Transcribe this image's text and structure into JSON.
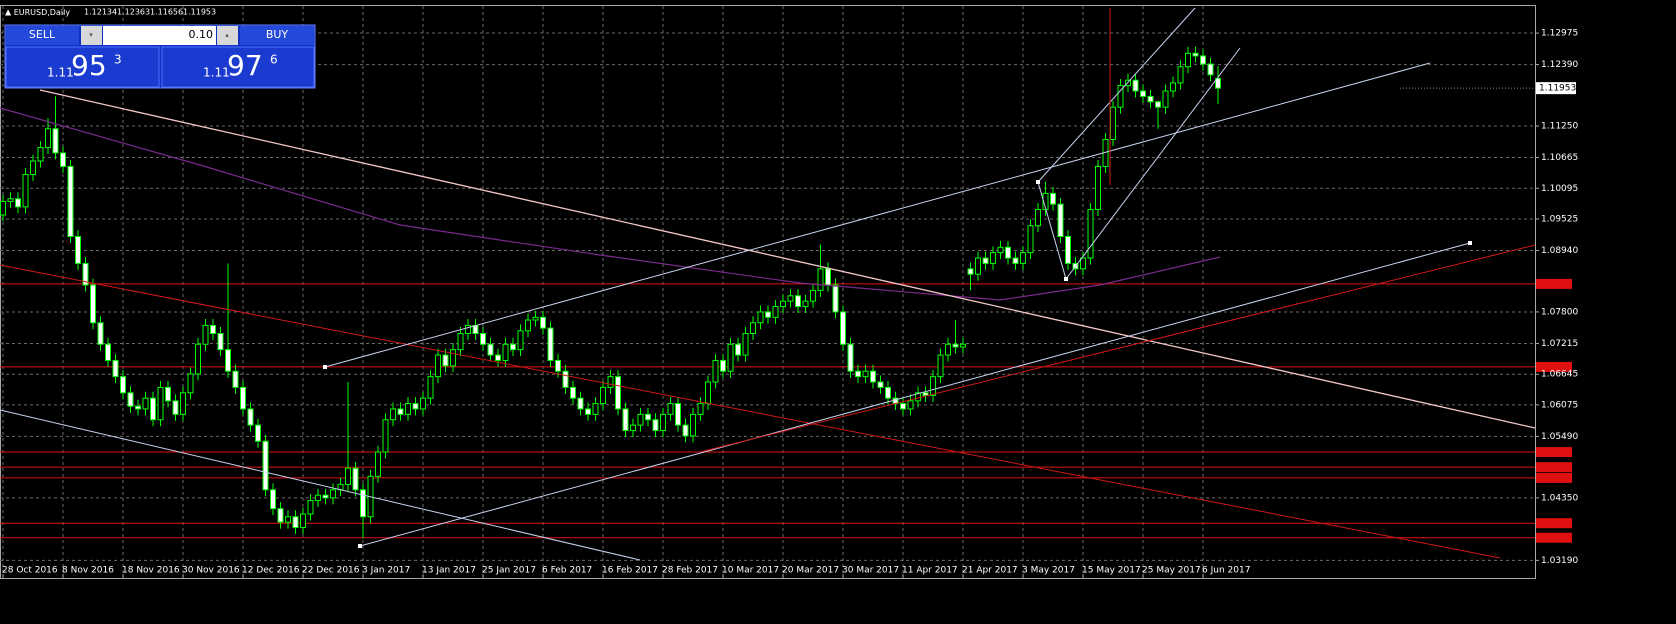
{
  "symbol": "EURUSD,Daily",
  "trade_panel": {
    "sell_label": "SELL",
    "buy_label": "BUY",
    "lot": "0.10",
    "bid": {
      "big": "1.11",
      "pips": "95",
      "point": "3"
    },
    "ask": {
      "big": "1.11",
      "pips": "97",
      "point": "6"
    }
  },
  "chart_data": {
    "type": "candlestick",
    "categories": [
      "28 Oct 2016",
      null,
      null,
      null,
      null,
      null,
      null,
      null,
      "8 Nov 2016",
      null,
      null,
      null,
      null,
      null,
      null,
      null,
      "18 Nov 2016",
      null,
      null,
      null,
      null,
      null,
      null,
      null,
      "30 Nov 2016",
      null,
      null,
      null,
      null,
      null,
      null,
      null,
      "12 Dec 2016",
      null,
      null,
      null,
      null,
      null,
      null,
      null,
      "22 Dec 2016",
      null,
      null,
      null,
      null,
      null,
      null,
      null,
      "3 Jan 2017",
      null,
      null,
      null,
      null,
      null,
      null,
      null,
      "13 Jan 2017",
      null,
      null,
      null,
      null,
      null,
      null,
      null,
      "25 Jan 2017",
      null,
      null,
      null,
      null,
      null,
      null,
      null,
      "6 Feb 2017",
      null,
      null,
      null,
      null,
      null,
      null,
      null,
      "16 Feb 2017",
      null,
      null,
      null,
      null,
      null,
      null,
      null,
      "28 Feb 2017",
      null,
      null,
      null,
      null,
      null,
      null,
      null,
      "10 Mar 2017",
      null,
      null,
      null,
      null,
      null,
      null,
      null,
      "20 Mar 2017",
      null,
      null,
      null,
      null,
      null,
      null,
      null,
      "30 Mar 2017",
      null,
      null,
      null,
      null,
      null,
      null,
      null,
      "11 Apr 2017",
      null,
      null,
      null,
      null,
      null,
      null,
      null,
      "21 Apr 2017",
      null,
      null,
      null,
      null,
      null,
      null,
      null,
      "3 May 2017",
      null,
      null,
      null,
      null,
      null,
      null,
      null,
      "15 May 2017",
      null,
      null,
      null,
      null,
      null,
      null,
      null,
      "25 May 2017",
      null,
      null,
      null,
      null,
      null,
      null,
      null,
      "6 Jun 2017",
      null,
      null
    ],
    "open": [
      1.096,
      1.0985,
      1.099,
      1.0975,
      1.1035,
      1.106,
      1.1085,
      1.112,
      1.1075,
      1.105,
      1.092,
      1.087,
      1.083,
      1.076,
      1.072,
      1.069,
      1.066,
      1.063,
      1.0605,
      1.06,
      1.062,
      1.058,
      1.064,
      1.0615,
      1.059,
      1.063,
      1.0665,
      1.072,
      1.0755,
      1.074,
      1.071,
      1.067,
      1.064,
      1.06,
      1.057,
      1.054,
      1.045,
      1.0415,
      1.039,
      1.04,
      1.038,
      1.0405,
      1.043,
      1.044,
      1.0435,
      1.045,
      1.046,
      1.049,
      1.045,
      1.04,
      1.0475,
      1.052,
      1.058,
      1.06,
      1.059,
      1.061,
      1.06,
      1.062,
      1.066,
      1.07,
      1.068,
      1.071,
      1.074,
      1.0755,
      1.074,
      1.072,
      1.07,
      1.069,
      1.072,
      1.071,
      1.0745,
      1.0765,
      1.077,
      1.075,
      1.069,
      1.067,
      1.064,
      1.062,
      1.06,
      1.059,
      1.061,
      1.064,
      1.066,
      1.06,
      1.056,
      1.057,
      1.059,
      1.058,
      1.056,
      1.059,
      1.061,
      1.057,
      1.055,
      1.059,
      1.061,
      1.065,
      1.069,
      1.067,
      1.072,
      1.07,
      1.074,
      1.076,
      1.078,
      1.077,
      1.079,
      1.08,
      1.081,
      1.079,
      1.08,
      1.082,
      1.086,
      1.083,
      1.078,
      1.072,
      1.067,
      1.066,
      1.067,
      1.065,
      1.064,
      1.062,
      1.061,
      1.06,
      1.0615,
      1.063,
      1.0625,
      1.066,
      1.07,
      1.072,
      1.0715,
      1.086,
      1.085,
      1.088,
      1.087,
      1.089,
      1.09,
      1.088,
      1.087,
      1.089,
      1.094,
      1.097,
      1.1,
      1.098,
      1.092,
      1.087,
      1.086,
      1.088,
      1.097,
      1.105,
      1.11,
      1.116,
      1.12,
      1.121,
      1.119,
      1.118,
      1.117,
      1.116,
      1.119,
      1.1205,
      1.1235,
      1.126,
      1.1255,
      1.124,
      1.12134
    ],
    "high": [
      1.0997,
      1.1002,
      1.1002,
      1.1047,
      1.1072,
      1.1097,
      1.114,
      1.118,
      1.1087,
      1.1062,
      1.0932,
      1.0882,
      1.0842,
      1.0772,
      1.0732,
      1.0702,
      1.0672,
      1.0642,
      1.0617,
      1.0632,
      1.0632,
      1.0652,
      1.0652,
      1.0627,
      1.0642,
      1.0677,
      1.0732,
      1.0767,
      1.0767,
      1.0752,
      1.087,
      1.0682,
      1.0652,
      1.0612,
      1.0582,
      1.0552,
      1.0462,
      1.0427,
      1.0412,
      1.0412,
      1.0417,
      1.0442,
      1.0452,
      1.0452,
      1.0462,
      1.0472,
      1.065,
      1.0502,
      1.0462,
      1.0487,
      1.0532,
      1.0592,
      1.0612,
      1.0612,
      1.0622,
      1.0622,
      1.0632,
      1.0672,
      1.0712,
      1.0712,
      1.0722,
      1.0752,
      1.0767,
      1.0767,
      1.0752,
      1.0732,
      1.0712,
      1.0732,
      1.0732,
      1.0757,
      1.0777,
      1.0782,
      1.0782,
      1.0762,
      1.0702,
      1.0682,
      1.0652,
      1.0632,
      1.0612,
      1.0622,
      1.0652,
      1.0672,
      1.0672,
      1.0612,
      1.0582,
      1.0602,
      1.0602,
      1.0592,
      1.0602,
      1.0622,
      1.0622,
      1.0582,
      1.0602,
      1.0622,
      1.0662,
      1.0702,
      1.0702,
      1.0732,
      1.0732,
      1.0752,
      1.0772,
      1.0792,
      1.0792,
      1.0802,
      1.0812,
      1.0822,
      1.0822,
      1.0812,
      1.0832,
      1.0905,
      1.0872,
      1.0842,
      1.0792,
      1.0732,
      1.0682,
      1.0682,
      1.0682,
      1.0662,
      1.0652,
      1.0632,
      1.0622,
      1.0627,
      1.0642,
      1.0642,
      1.0672,
      1.0712,
      1.0732,
      1.0765,
      1.0732,
      1.0872,
      1.0892,
      1.0892,
      1.0902,
      1.0912,
      1.0912,
      1.0892,
      1.0902,
      1.0952,
      1.0982,
      1.1022,
      1.1012,
      1.0992,
      1.0932,
      1.0882,
      1.0892,
      1.0982,
      1.1062,
      1.1112,
      1.1172,
      1.1212,
      1.1222,
      1.1222,
      1.1202,
      1.1192,
      1.1172,
      1.1202,
      1.1217,
      1.1247,
      1.1272,
      1.1272,
      1.1267,
      1.1252,
      1.12363
    ],
    "low": [
      1.0948,
      1.0973,
      1.0963,
      1.0963,
      1.1023,
      1.1048,
      1.1073,
      1.1063,
      1.1038,
      1.0908,
      1.0858,
      1.0818,
      1.0748,
      1.0708,
      1.0678,
      1.0648,
      1.0618,
      1.0593,
      1.0588,
      1.0588,
      1.0568,
      1.0568,
      1.0603,
      1.0578,
      1.0578,
      1.0618,
      1.0653,
      1.0708,
      1.0728,
      1.0698,
      1.0658,
      1.0628,
      1.0588,
      1.0558,
      1.0528,
      1.0438,
      1.0403,
      1.0378,
      1.0378,
      1.0368,
      1.0368,
      1.0393,
      1.0418,
      1.0423,
      1.0423,
      1.0438,
      1.0448,
      1.0438,
      1.036,
      1.0388,
      1.0463,
      1.0508,
      1.0568,
      1.0578,
      1.0578,
      1.0588,
      1.0588,
      1.0608,
      1.0648,
      1.0668,
      1.0668,
      1.0698,
      1.0728,
      1.0728,
      1.0708,
      1.0688,
      1.0678,
      1.0678,
      1.0698,
      1.0698,
      1.0733,
      1.0753,
      1.0738,
      1.0678,
      1.0658,
      1.0628,
      1.0608,
      1.0588,
      1.0578,
      1.0578,
      1.0598,
      1.0628,
      1.0588,
      1.0548,
      1.0548,
      1.0558,
      1.0568,
      1.0548,
      1.0548,
      1.0578,
      1.0558,
      1.0538,
      1.0538,
      1.0578,
      1.0598,
      1.0638,
      1.0658,
      1.0658,
      1.0688,
      1.0688,
      1.0728,
      1.0748,
      1.0758,
      1.0758,
      1.0778,
      1.0788,
      1.0778,
      1.0778,
      1.0788,
      1.0808,
      1.0818,
      1.0768,
      1.0708,
      1.0658,
      1.0648,
      1.0648,
      1.0638,
      1.0628,
      1.0608,
      1.0598,
      1.0588,
      1.0588,
      1.0603,
      1.0613,
      1.0613,
      1.0648,
      1.0688,
      1.0703,
      1.0703,
      1.082,
      1.0838,
      1.0858,
      1.0858,
      1.0878,
      1.0868,
      1.0858,
      1.0858,
      1.0878,
      1.0928,
      1.0958,
      1.0968,
      1.0908,
      1.0858,
      1.0848,
      1.0848,
      1.0868,
      1.0958,
      1.1038,
      1.1088,
      1.1148,
      1.1188,
      1.1178,
      1.1168,
      1.1158,
      1.112,
      1.1148,
      1.1178,
      1.1193,
      1.1223,
      1.1243,
      1.1228,
      1.1208,
      1.11656
    ],
    "close": [
      1.0985,
      1.099,
      1.0975,
      1.1035,
      1.106,
      1.1085,
      1.112,
      1.1075,
      1.105,
      1.092,
      1.087,
      1.083,
      1.076,
      1.072,
      1.069,
      1.066,
      1.063,
      1.0605,
      1.06,
      1.062,
      1.058,
      1.064,
      1.0615,
      1.059,
      1.063,
      1.0665,
      1.072,
      1.0755,
      1.074,
      1.071,
      1.067,
      1.064,
      1.06,
      1.057,
      1.054,
      1.045,
      1.0415,
      1.039,
      1.04,
      1.038,
      1.0405,
      1.043,
      1.044,
      1.0435,
      1.045,
      1.046,
      1.049,
      1.045,
      1.04,
      1.0475,
      1.052,
      1.058,
      1.06,
      1.059,
      1.061,
      1.06,
      1.062,
      1.066,
      1.07,
      1.068,
      1.071,
      1.074,
      1.0755,
      1.074,
      1.072,
      1.07,
      1.069,
      1.072,
      1.071,
      1.0745,
      1.0765,
      1.077,
      1.075,
      1.069,
      1.067,
      1.064,
      1.062,
      1.06,
      1.059,
      1.061,
      1.064,
      1.066,
      1.06,
      1.056,
      1.057,
      1.059,
      1.058,
      1.056,
      1.059,
      1.061,
      1.057,
      1.055,
      1.059,
      1.061,
      1.065,
      1.069,
      1.067,
      1.072,
      1.07,
      1.074,
      1.076,
      1.078,
      1.077,
      1.079,
      1.08,
      1.081,
      1.079,
      1.08,
      1.082,
      1.086,
      1.083,
      1.078,
      1.072,
      1.067,
      1.066,
      1.067,
      1.065,
      1.064,
      1.062,
      1.061,
      1.06,
      1.0615,
      1.063,
      1.0625,
      1.066,
      1.07,
      1.072,
      1.0715,
      1.072,
      1.085,
      1.088,
      1.087,
      1.089,
      1.09,
      1.088,
      1.087,
      1.089,
      1.094,
      1.097,
      1.1,
      1.098,
      1.092,
      1.087,
      1.086,
      1.088,
      1.097,
      1.105,
      1.11,
      1.116,
      1.12,
      1.121,
      1.119,
      1.118,
      1.117,
      1.116,
      1.119,
      1.1205,
      1.1235,
      1.126,
      1.1255,
      1.124,
      1.122,
      1.11953
    ],
    "ylim": [
      1.0316,
      1.1344
    ],
    "yticks": [
      {
        "value": 1.12975,
        "label": "1.12975"
      },
      {
        "value": 1.1239,
        "label": "1.12390"
      },
      {
        "value": 1.1125,
        "label": "1.11250"
      },
      {
        "value": 1.10665,
        "label": "1.10665"
      },
      {
        "value": 1.10095,
        "label": "1.10095"
      },
      {
        "value": 1.09525,
        "label": "1.09525"
      },
      {
        "value": 1.0894,
        "label": "1.08940"
      },
      {
        "value": 1.078,
        "label": "1.07800"
      },
      {
        "value": 1.07215,
        "label": "1.07215"
      },
      {
        "value": 1.06645,
        "label": "1.06645"
      },
      {
        "value": 1.06075,
        "label": "1.06075"
      },
      {
        "value": 1.0549,
        "label": "1.05490"
      },
      {
        "value": 1.0435,
        "label": "1.04350"
      },
      {
        "value": 1.0319,
        "label": "1.03190"
      }
    ],
    "hlines": [
      1.0832,
      1.0678,
      1.052,
      1.0492,
      1.0472,
      1.0388,
      1.0361
    ],
    "hline_color": "#e01010",
    "bull_color": "#000000",
    "bear_color": "#ffffff",
    "line_color": "#00ff00",
    "grid": true
  }
}
